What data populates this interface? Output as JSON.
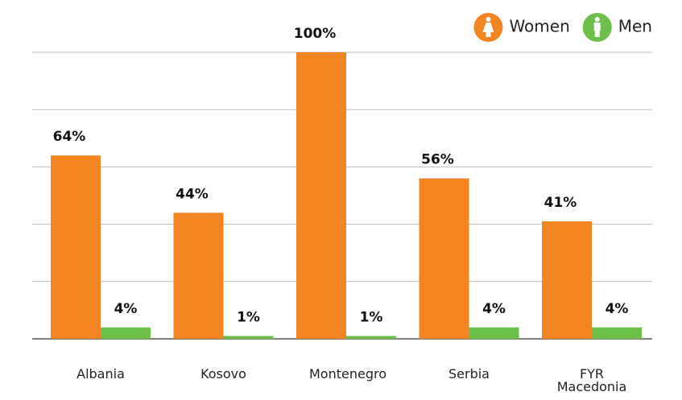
{
  "chart_data": {
    "type": "bar",
    "categories": [
      "Albania",
      "Kosovo",
      "Montenegro",
      "Serbia",
      "FYR Macedonia"
    ],
    "series": [
      {
        "name": "Women",
        "color": "#f28422",
        "values": [
          64,
          44,
          100,
          56,
          41
        ],
        "value_labels": [
          "64%",
          "44%",
          "100%",
          "56%",
          "41%"
        ]
      },
      {
        "name": "Men",
        "color": "#6cc04a",
        "values": [
          4,
          1,
          1,
          4,
          4
        ],
        "value_labels": [
          "4%",
          "1%",
          "1%",
          "4%",
          "4%"
        ]
      }
    ],
    "ylim": [
      0,
      100
    ],
    "yticks": [
      0,
      20,
      40,
      60,
      80,
      100
    ],
    "grid": true,
    "legend": "top-right"
  }
}
